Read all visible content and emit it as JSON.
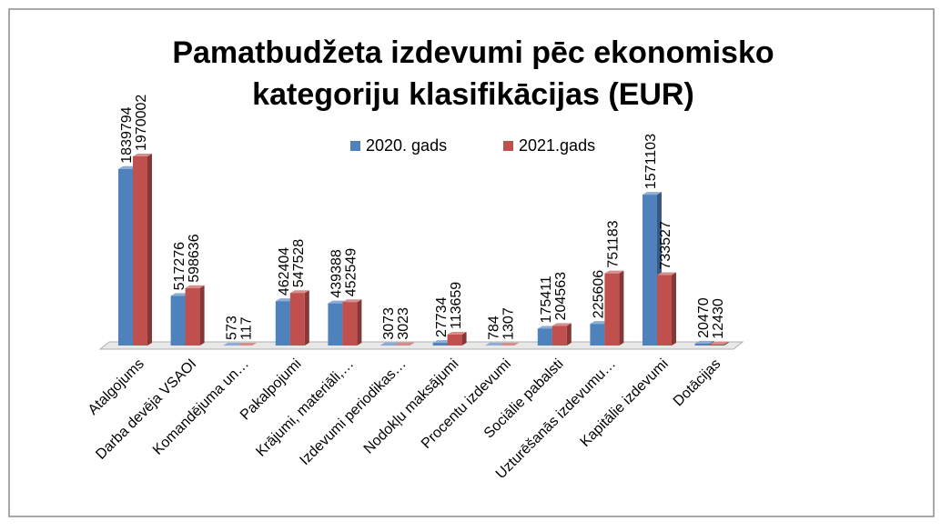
{
  "chart_data": {
    "type": "bar",
    "title": [
      "Pamatbudžeta izdevumi pēc ekonomisko",
      "kategoriju klasifikācijas (EUR)"
    ],
    "categories": [
      "Atalgojums",
      "Darba devēja VSAOI",
      "Komandējuma un…",
      "Pakalpojumi",
      "Krājumi, materiāli,…",
      "Izdevumi periodikas…",
      "Nodokļu maksājumi",
      "Procentu izdevumi",
      "Sociālie pabalsti",
      "Uzturēšanās izdevumu…",
      "Kapitālie izdevumi",
      "Dotācijas"
    ],
    "series": [
      {
        "name": "2020. gads",
        "color": "#4f81bd",
        "values": [
          1839794,
          517276,
          573,
          462404,
          439388,
          3073,
          27734,
          784,
          175411,
          225606,
          1571103,
          20470
        ]
      },
      {
        "name": "2021.gads",
        "color": "#c0504d",
        "values": [
          1970002,
          598636,
          117,
          547528,
          452549,
          3023,
          113659,
          1307,
          204563,
          751183,
          733527,
          12430
        ]
      }
    ]
  }
}
